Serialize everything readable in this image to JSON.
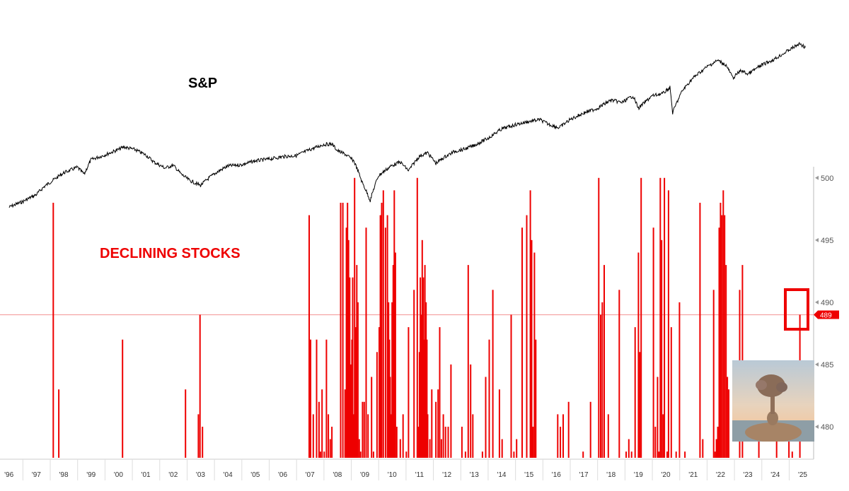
{
  "chart_data": [
    {
      "type": "line",
      "label": "S&P",
      "color": "#000000",
      "x": [
        1996.0,
        1996.5,
        1997.0,
        1997.3,
        1997.6,
        1998.0,
        1998.5,
        1998.75,
        1999.0,
        1999.5,
        2000.0,
        2000.2,
        2000.6,
        2001.0,
        2001.3,
        2001.7,
        2002.0,
        2002.3,
        2002.6,
        2002.8,
        2003.0,
        2003.3,
        2003.6,
        2004.0,
        2004.5,
        2005.0,
        2005.5,
        2006.0,
        2006.5,
        2007.0,
        2007.5,
        2007.8,
        2008.0,
        2008.3,
        2008.6,
        2008.9,
        2009.2,
        2009.5,
        2010.0,
        2010.3,
        2010.6,
        2011.0,
        2011.3,
        2011.6,
        2011.9,
        2012.3,
        2012.6,
        2013.0,
        2013.5,
        2014.0,
        2014.5,
        2015.0,
        2015.4,
        2015.7,
        2016.1,
        2016.5,
        2017.0,
        2017.5,
        2018.0,
        2018.4,
        2018.8,
        2019.0,
        2019.5,
        2019.9,
        2020.15,
        2020.25,
        2020.6,
        2021.0,
        2021.5,
        2021.9,
        2022.2,
        2022.45,
        2022.75,
        2023.0,
        2023.5,
        2024.0,
        2024.5,
        2024.9,
        2025.1
      ],
      "y": [
        640,
        690,
        760,
        850,
        920,
        1020,
        1100,
        1000,
        1220,
        1300,
        1400,
        1450,
        1400,
        1300,
        1180,
        1090,
        1130,
        1000,
        920,
        890,
        860,
        950,
        1030,
        1120,
        1140,
        1200,
        1230,
        1270,
        1290,
        1400,
        1500,
        1510,
        1380,
        1310,
        1200,
        900,
        700,
        980,
        1130,
        1180,
        1050,
        1280,
        1340,
        1160,
        1260,
        1370,
        1400,
        1480,
        1630,
        1850,
        1960,
        2050,
        2100,
        1980,
        1880,
        2100,
        2300,
        2450,
        2740,
        2650,
        2900,
        2450,
        2900,
        3000,
        3250,
        2300,
        3100,
        3700,
        4300,
        4700,
        4400,
        3700,
        4100,
        3900,
        4400,
        4800,
        5400,
        5900,
        5600
      ],
      "annotations": [
        {
          "text": "S&P"
        }
      ]
    },
    {
      "type": "bar",
      "label": "DECLINING STOCKS",
      "color": "#ee0000",
      "ylim": [
        477.5,
        500.5
      ],
      "yticks": [
        500,
        495,
        490,
        485,
        480
      ],
      "xlim": [
        1995.75,
        2025.35
      ],
      "xtick_values": [
        1996,
        1997,
        1998,
        1999,
        2000,
        2001,
        2002,
        2003,
        2004,
        2005,
        2006,
        2007,
        2008,
        2009,
        2010,
        2011,
        2012,
        2013,
        2014,
        2015,
        2016,
        2017,
        2018,
        2019,
        2020,
        2021,
        2022,
        2023,
        2024,
        2025
      ],
      "xtick_labels": [
        "'96",
        "'97",
        "'98",
        "'99",
        "'00",
        "'01",
        "'02",
        "'03",
        "'04",
        "'05",
        "'06",
        "'07",
        "'08",
        "'09",
        "'10",
        "'11",
        "'12",
        "'13",
        "'14",
        "'15",
        "'16",
        "'17",
        "'18",
        "'19",
        "'20",
        "'21",
        "'22",
        "'23",
        "'24",
        "'25"
      ],
      "x": [
        1997.62,
        1997.82,
        2000.15,
        2002.45,
        2002.92,
        2002.98,
        2003.07,
        2006.97,
        2007.02,
        2007.12,
        2007.24,
        2007.33,
        2007.38,
        2007.44,
        2007.52,
        2007.6,
        2007.67,
        2007.74,
        2007.8,
        2008.12,
        2008.2,
        2008.28,
        2008.33,
        2008.37,
        2008.41,
        2008.45,
        2008.49,
        2008.53,
        2008.56,
        2008.6,
        2008.63,
        2008.67,
        2008.71,
        2008.75,
        2008.8,
        2008.85,
        2008.92,
        2008.98,
        2009.05,
        2009.12,
        2009.25,
        2009.32,
        2009.45,
        2009.53,
        2009.57,
        2009.62,
        2009.68,
        2009.76,
        2009.83,
        2009.87,
        2009.9,
        2009.93,
        2009.96,
        2010.0,
        2010.04,
        2010.08,
        2010.12,
        2010.17,
        2010.3,
        2010.4,
        2010.45,
        2010.52,
        2010.6,
        2010.8,
        2010.92,
        2010.97,
        2011.0,
        2011.03,
        2011.07,
        2011.1,
        2011.14,
        2011.17,
        2011.2,
        2011.24,
        2011.27,
        2011.3,
        2011.34,
        2011.38,
        2011.45,
        2011.52,
        2011.6,
        2011.68,
        2011.74,
        2011.8,
        2011.87,
        2011.95,
        2012.05,
        2012.15,
        2012.55,
        2012.68,
        2012.78,
        2012.87,
        2012.95,
        2013.3,
        2013.42,
        2013.55,
        2013.68,
        2013.92,
        2014.02,
        2014.35,
        2014.45,
        2014.55,
        2014.75,
        2014.92,
        2015.05,
        2015.1,
        2015.15,
        2015.2,
        2015.25,
        2016.05,
        2016.1,
        2016.15,
        2016.25,
        2016.45,
        2016.98,
        2017.25,
        2017.55,
        2017.62,
        2017.68,
        2017.75,
        2017.9,
        2018.3,
        2018.55,
        2018.65,
        2018.75,
        2018.88,
        2019.0,
        2019.05,
        2019.1,
        2019.55,
        2019.62,
        2019.7,
        2019.75,
        2019.8,
        2019.85,
        2019.9,
        2019.95,
        2020.05,
        2020.1,
        2020.2,
        2020.28,
        2020.38,
        2020.5,
        2020.7,
        2021.25,
        2021.35,
        2021.75,
        2021.8,
        2021.85,
        2021.9,
        2021.95,
        2022.0,
        2022.05,
        2022.1,
        2022.15,
        2022.2,
        2022.25,
        2022.3,
        2022.7,
        2022.8,
        2023.4,
        2024.05,
        2024.5,
        2024.62,
        2024.9
      ],
      "values": [
        498,
        483,
        487,
        483,
        481,
        489,
        480,
        497,
        487,
        481,
        487,
        482,
        478,
        483,
        478,
        487,
        481,
        479,
        480,
        498,
        498,
        483,
        496,
        498,
        495,
        492,
        485,
        487,
        492,
        481,
        500,
        488,
        493,
        490,
        479,
        478,
        482,
        482,
        496,
        481,
        484,
        478,
        486,
        488,
        497,
        498,
        499,
        496,
        497,
        490,
        487,
        484,
        481,
        490,
        493,
        499,
        494,
        480,
        479,
        481,
        476,
        478,
        488,
        491,
        500,
        480,
        486,
        492,
        489,
        495,
        492,
        487,
        493,
        490,
        487,
        481,
        477,
        479,
        483,
        477,
        482,
        483,
        488,
        479,
        481,
        480,
        480,
        485,
        480,
        478,
        493,
        485,
        481,
        478,
        484,
        487,
        491,
        483,
        479,
        489,
        478,
        479,
        496,
        497,
        499,
        495,
        480,
        494,
        487,
        481,
        477,
        480,
        481,
        482,
        478,
        482,
        500,
        489,
        490,
        493,
        481,
        491,
        478,
        479,
        478,
        488,
        494,
        486,
        500,
        496,
        480,
        484,
        478,
        500,
        495,
        481,
        500,
        478,
        499,
        488,
        477,
        478,
        490,
        478,
        498,
        479,
        491,
        478,
        479,
        480,
        496,
        498,
        497,
        499,
        497,
        493,
        484,
        483,
        491,
        493,
        484,
        481,
        483,
        478,
        489
      ],
      "reference_line": {
        "value": 489,
        "label": "489",
        "color": "#f4a3a3"
      }
    }
  ]
}
